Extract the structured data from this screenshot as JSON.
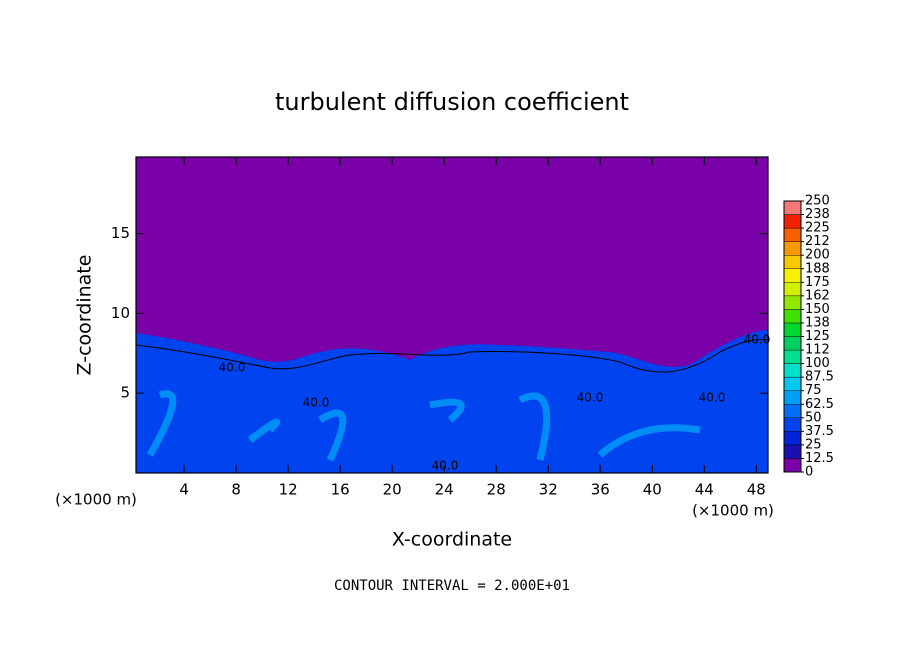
{
  "chart_data": {
    "type": "contour",
    "title": "turbulent diffusion coefficient",
    "xlabel": "X-coordinate",
    "ylabel": "Z-coordinate",
    "x_unit_left": "(×1000 m)",
    "x_unit_right": "(×1000 m)",
    "footnote": "CONTOUR INTERVAL = 2.000E+01",
    "xlim": [
      0.3,
      48.9
    ],
    "xticks": [
      4,
      8,
      12,
      16,
      20,
      24,
      28,
      32,
      36,
      40,
      44,
      48
    ],
    "ylim": [
      0,
      19.8
    ],
    "yticks": [
      5,
      10,
      15
    ],
    "contour_labels": [
      "40.0",
      "40.0",
      "40.0",
      "40.0",
      "40.0",
      "40.0"
    ],
    "colorbar_ticks": [
      0,
      12.5,
      25,
      37.5,
      50,
      62.5,
      75,
      87.5,
      100,
      112,
      125,
      138,
      150,
      162,
      175,
      188,
      200,
      212,
      225,
      238,
      250
    ],
    "colorbar_colors": [
      "#7a00a8",
      "#1a10b0",
      "#0024d8",
      "#0044f0",
      "#0070f8",
      "#00a0f8",
      "#00c8f0",
      "#00e0c8",
      "#00e090",
      "#00d060",
      "#00d830",
      "#40e000",
      "#90e800",
      "#d0f000",
      "#f8f000",
      "#f8c800",
      "#f89800",
      "#f86000",
      "#f02000",
      "#f07878"
    ]
  }
}
